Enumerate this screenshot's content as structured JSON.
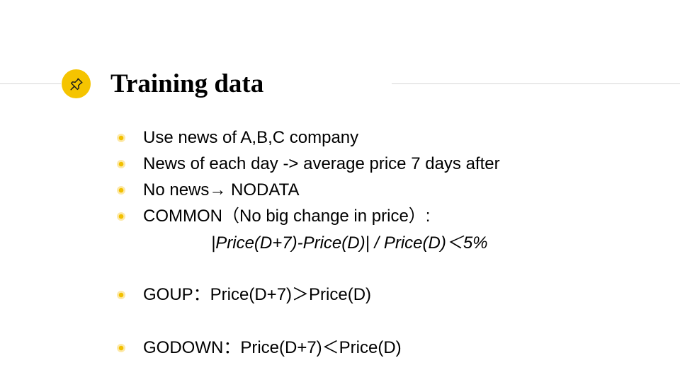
{
  "slide": {
    "title": "Training data",
    "accent_color": "#f5c400",
    "icon": "pushpin-icon",
    "bullets": [
      {
        "text": "Use news of A,B,C company"
      },
      {
        "text": "News of each day -> average price 7 days after"
      },
      {
        "text": "No news→ NODATA"
      },
      {
        "text": "COMMON（No big change in price）:"
      },
      {
        "text": "GOUP：Price(D+7)＞Price(D)"
      },
      {
        "text": "GODOWN：Price(D+7)＜Price(D)"
      }
    ],
    "formula": "|Price(D+7)-Price(D)| / Price(D)＜5%"
  }
}
